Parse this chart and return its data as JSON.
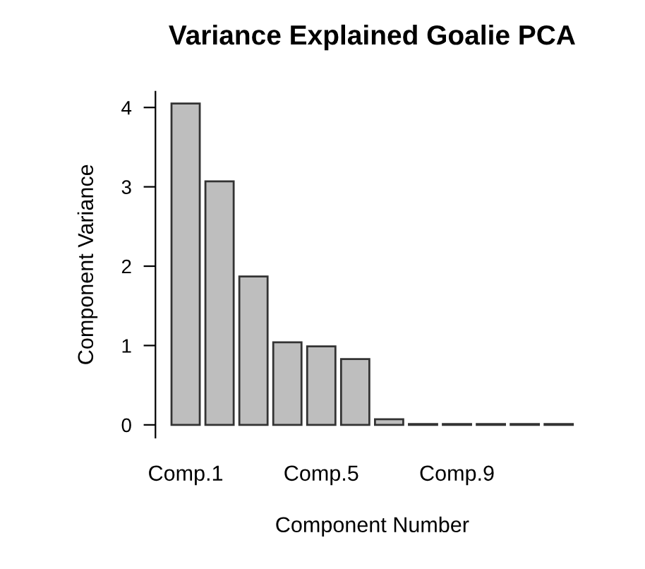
{
  "chart_data": {
    "type": "bar",
    "title": "Variance Explained Goalie PCA",
    "xlabel": "Component Number",
    "ylabel": "Component Variance",
    "categories": [
      "Comp.1",
      null,
      null,
      null,
      "Comp.5",
      null,
      null,
      null,
      "Comp.9",
      null,
      null,
      null
    ],
    "values": [
      4.05,
      3.07,
      1.87,
      1.04,
      0.99,
      0.83,
      0.07,
      0.01,
      0.01,
      0.01,
      0.01,
      0.01
    ],
    "color": "#bebebe",
    "ylim": [
      -0.16,
      4.2
    ],
    "yticks": [
      0,
      1,
      2,
      3,
      4
    ],
    "grid": false
  }
}
